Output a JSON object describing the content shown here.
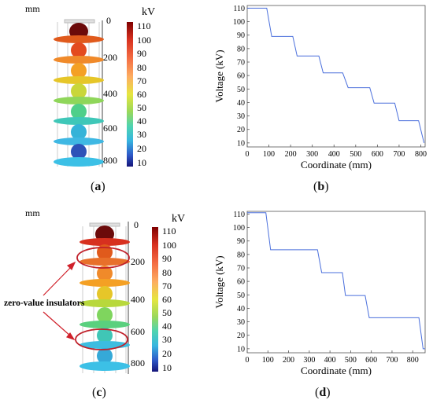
{
  "panels": [
    {
      "id": "a",
      "label": "a"
    },
    {
      "id": "b",
      "label": "b"
    },
    {
      "id": "c",
      "label": "c"
    },
    {
      "id": "d",
      "label": "d"
    }
  ],
  "contour": {
    "unit_left": "mm",
    "unit_right": "kV",
    "depth_ticks": [
      "0",
      "200",
      "400",
      "600",
      "800"
    ],
    "colorbar_ticks": [
      "110",
      "100",
      "90",
      "80",
      "70",
      "60",
      "50",
      "40",
      "30",
      "20",
      "10"
    ],
    "colorbar_colors": [
      "#8b0000",
      "#d7301f",
      "#f46d43",
      "#fdae61",
      "#fee08b",
      "#d9ef8b",
      "#66c2a5",
      "#3cb4c8",
      "#3288bd",
      "#2b3fa8",
      "#1a1a80"
    ],
    "annotation": "zero-value insulators"
  },
  "chart_data": [
    {
      "type": "line",
      "panel": "b",
      "xlabel": "Coordinate (mm)",
      "ylabel": "Voltage (kV)",
      "xlim": [
        0,
        820
      ],
      "ylim": [
        7,
        112
      ],
      "xticks": [
        0,
        100,
        200,
        300,
        400,
        500,
        600,
        700,
        800
      ],
      "yticks": [
        10,
        20,
        30,
        40,
        50,
        60,
        70,
        80,
        90,
        100,
        110
      ],
      "color": "#4a6fdc",
      "x": [
        0,
        90,
        113,
        210,
        230,
        330,
        350,
        440,
        465,
        565,
        585,
        680,
        700,
        790,
        815
      ],
      "y": [
        110,
        110,
        89,
        89,
        74.5,
        74.5,
        62,
        62,
        51,
        51,
        39.5,
        39.5,
        26.5,
        26.5,
        10
      ]
    },
    {
      "type": "line",
      "panel": "d",
      "xlabel": "Coordinate (mm)",
      "ylabel": "Voltage (kV)",
      "xlim": [
        0,
        860
      ],
      "ylim": [
        7,
        112
      ],
      "xticks": [
        0,
        100,
        200,
        300,
        400,
        500,
        600,
        700,
        800
      ],
      "yticks": [
        10,
        20,
        30,
        40,
        50,
        60,
        70,
        80,
        90,
        100,
        110
      ],
      "color": "#4a6fdc",
      "x": [
        0,
        90,
        113,
        340,
        360,
        460,
        475,
        570,
        590,
        830,
        850,
        860
      ],
      "y": [
        111,
        111,
        83.5,
        83.5,
        66.5,
        66.5,
        49.5,
        49.5,
        33,
        33,
        10,
        10
      ]
    }
  ]
}
